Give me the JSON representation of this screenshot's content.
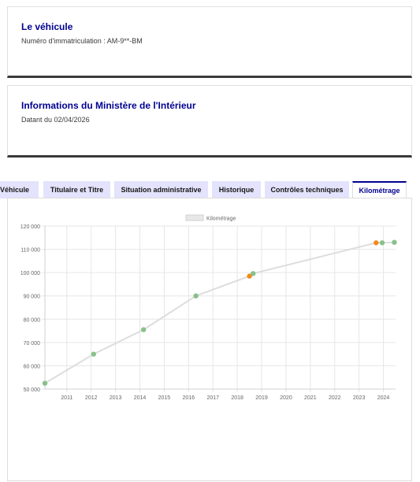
{
  "vehicle_card": {
    "title": "Le véhicule",
    "registration": "Numéro d'immatriculation : AM-9**-BM"
  },
  "ministry_card": {
    "title": "Informations du Ministère de l'Intérieur",
    "date": "Datant du 02/04/2026"
  },
  "tabs": [
    {
      "label": "Véhicule",
      "active": false
    },
    {
      "label": "Titulaire et Titre",
      "active": false
    },
    {
      "label": "Situation administrative",
      "active": false
    },
    {
      "label": "Historique",
      "active": false
    },
    {
      "label": "Contrôles techniques",
      "active": false
    },
    {
      "label": "Kilométrage",
      "active": true
    }
  ],
  "chart_data": {
    "type": "line",
    "legend": [
      "Kilométrage"
    ],
    "legend_position": "top",
    "grid": true,
    "ylim": [
      50000,
      120000
    ],
    "xlim": [
      2010.1,
      2024.5
    ],
    "y_ticks": [
      "50 000",
      "60 000",
      "70 000",
      "80 000",
      "90 000",
      "100 000",
      "110 000",
      "120 000"
    ],
    "x_ticks": [
      "2011",
      "2012",
      "2013",
      "2014",
      "2015",
      "2016",
      "2017",
      "2018",
      "2019",
      "2020",
      "2021",
      "2022",
      "2023",
      "2024"
    ],
    "line_color": "#dddddd",
    "series": [
      {
        "name": "Kilométrage",
        "points": [
          {
            "x": 2010.1,
            "y": 52500,
            "color": "#88c18a"
          },
          {
            "x": 2012.1,
            "y": 65000,
            "color": "#88c18a"
          },
          {
            "x": 2014.15,
            "y": 75500,
            "color": "#88c18a"
          },
          {
            "x": 2016.3,
            "y": 90000,
            "color": "#88c18a"
          },
          {
            "x": 2018.5,
            "y": 98500,
            "color": "#f28b1a"
          },
          {
            "x": 2018.65,
            "y": 99600,
            "color": "#88c18a"
          },
          {
            "x": 2023.7,
            "y": 112800,
            "color": "#f28b1a"
          },
          {
            "x": 2023.95,
            "y": 112800,
            "color": "#88c18a"
          },
          {
            "x": 2024.45,
            "y": 113000,
            "color": "#88c18a"
          }
        ]
      }
    ]
  }
}
